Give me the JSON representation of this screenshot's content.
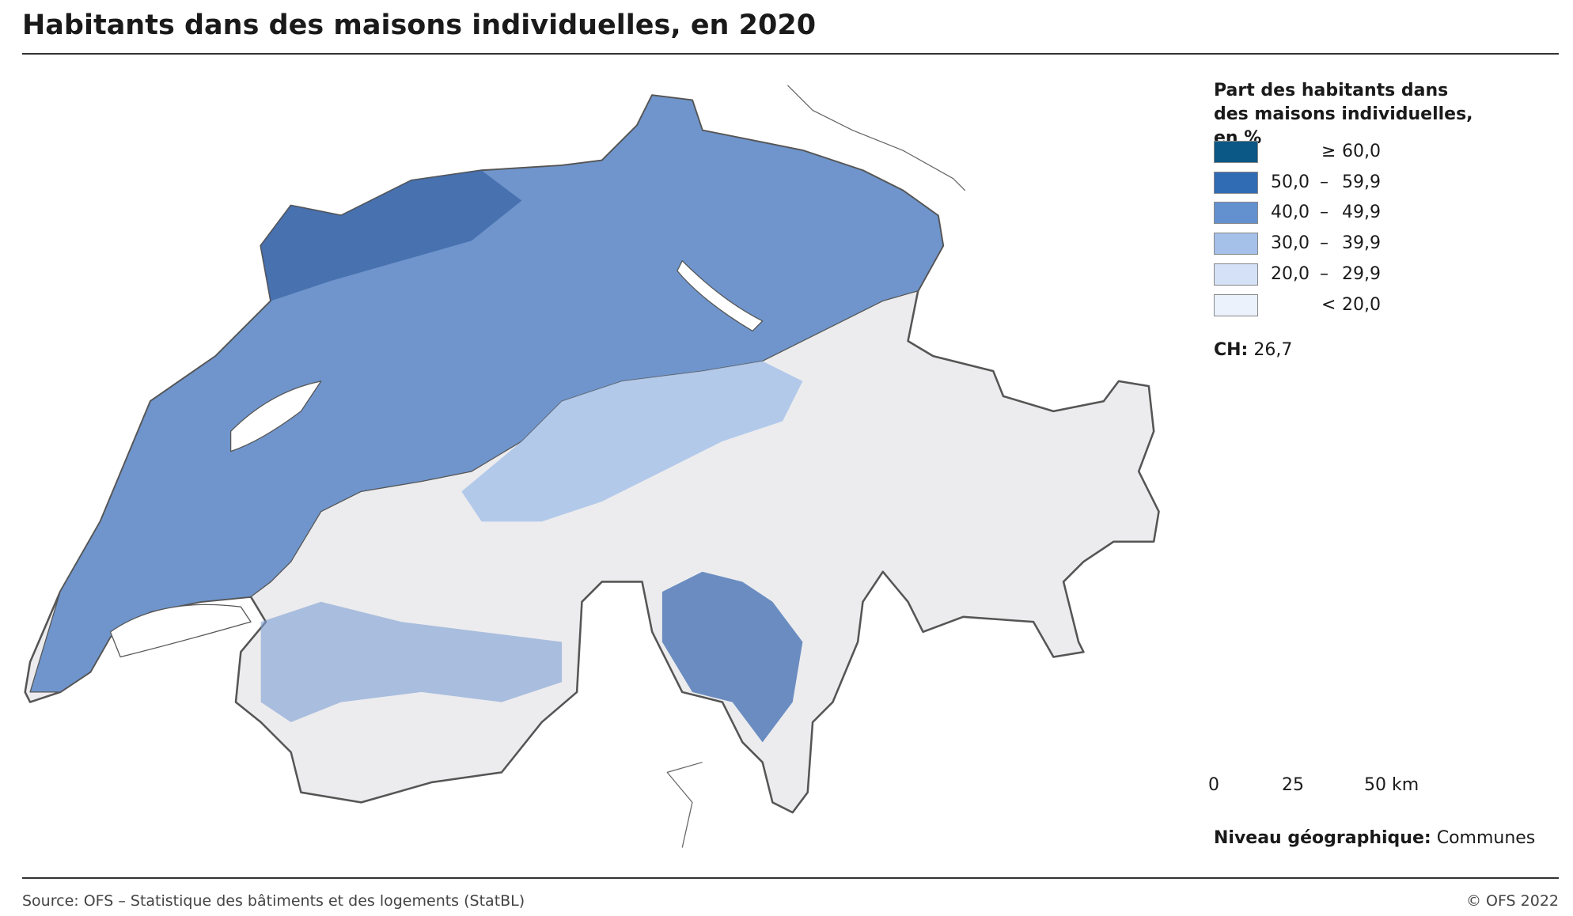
{
  "header": {
    "title": "Habitants dans des maisons individuelles, en 2020"
  },
  "legend": {
    "title": "Part des habitants dans des maisons individuelles, en %",
    "classes": [
      {
        "color": "#0b5785",
        "sep": "≥",
        "to": "60,0"
      },
      {
        "color": "#2f6cb3",
        "from": "50,0",
        "sep": "–",
        "to": "59,9"
      },
      {
        "color": "#6391d0",
        "from": "40,0",
        "sep": "–",
        "to": "49,9"
      },
      {
        "color": "#a5c0e9",
        "from": "30,0",
        "sep": "–",
        "to": "39,9"
      },
      {
        "color": "#d4e1f6",
        "from": "20,0",
        "sep": "–",
        "to": "29,9"
      },
      {
        "color": "#ebf2fc",
        "sep": "<",
        "to": "20,0"
      }
    ]
  },
  "national": {
    "label": "CH:",
    "value": "26,7"
  },
  "scale_bar": {
    "ticks": [
      "0",
      "25",
      "50 km"
    ]
  },
  "level": {
    "label": "Niveau géographique:",
    "value": "Communes"
  },
  "footer": {
    "source": "Source: OFS – Statistique des bâtiments et des logements (StatBL)",
    "copyright": "© OFS 2022"
  }
}
